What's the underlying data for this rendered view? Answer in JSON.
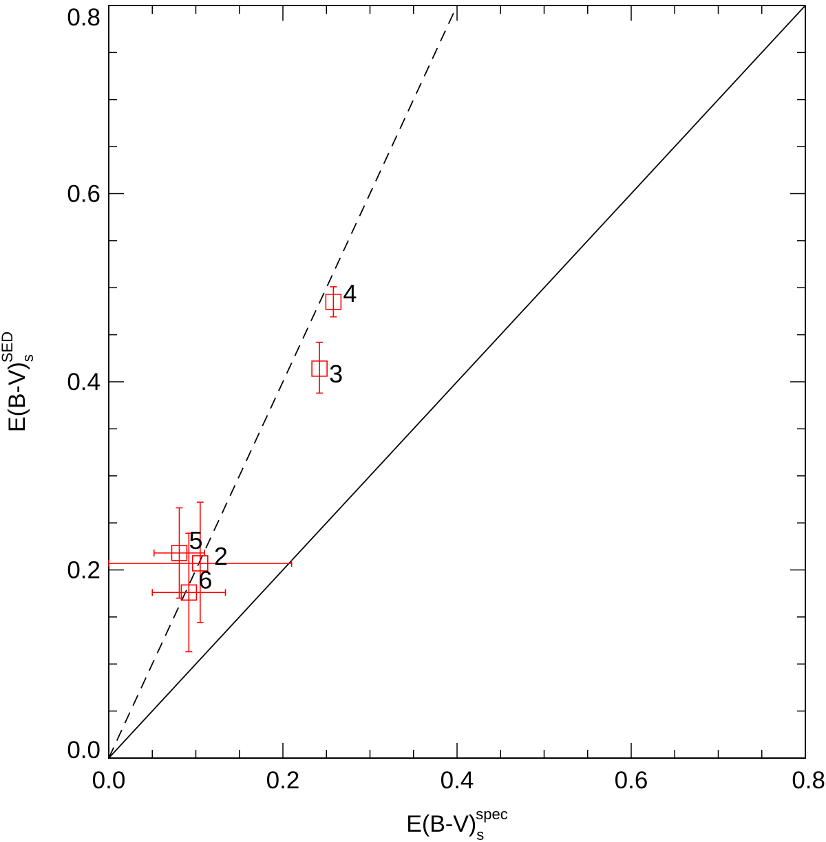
{
  "chart_data": {
    "type": "scatter",
    "title": "",
    "xlabel": {
      "main": "E(B-V)",
      "sub": "s",
      "sup": "spec"
    },
    "ylabel": {
      "main": "E(B-V)",
      "sub": "s",
      "sup": "SED"
    },
    "xlim": [
      0.0,
      0.8
    ],
    "ylim": [
      0.0,
      0.8
    ],
    "xticks": [
      "0.0",
      "0.2",
      "0.4",
      "0.6",
      "0.8"
    ],
    "yticks": [
      "0.0",
      "0.2",
      "0.4",
      "0.6",
      "0.8"
    ],
    "x_tick_values": [
      0.0,
      0.2,
      0.4,
      0.6,
      0.8
    ],
    "y_tick_values": [
      0.0,
      0.2,
      0.4,
      0.6,
      0.8
    ],
    "minor_step": 0.05,
    "grid": false,
    "point_color": "#ff0000",
    "lines": [
      {
        "name": "one-to-one",
        "style": "solid",
        "x": [
          0.0,
          0.8
        ],
        "y": [
          0.0,
          0.8
        ]
      },
      {
        "name": "slope-two",
        "style": "dashed",
        "x": [
          0.0,
          0.4
        ],
        "y": [
          0.0,
          0.8
        ]
      }
    ],
    "points": [
      {
        "label": "2",
        "x": 0.105,
        "y": 0.207,
        "xerr": [
          0.105,
          0.105
        ],
        "yerr": [
          0.063,
          0.065
        ]
      },
      {
        "label": "3",
        "x": 0.242,
        "y": 0.414,
        "xerr": [
          0.0,
          0.0
        ],
        "yerr": [
          0.026,
          0.028
        ]
      },
      {
        "label": "4",
        "x": 0.258,
        "y": 0.485,
        "xerr": [
          0.0,
          0.0
        ],
        "yerr": [
          0.016,
          0.016
        ]
      },
      {
        "label": "5",
        "x": 0.081,
        "y": 0.218,
        "xerr": [
          0.029,
          0.029
        ],
        "yerr": [
          0.048,
          0.048
        ]
      },
      {
        "label": "6",
        "x": 0.092,
        "y": 0.176,
        "xerr": [
          0.042,
          0.042
        ],
        "yerr": [
          0.063,
          0.063
        ]
      }
    ]
  }
}
